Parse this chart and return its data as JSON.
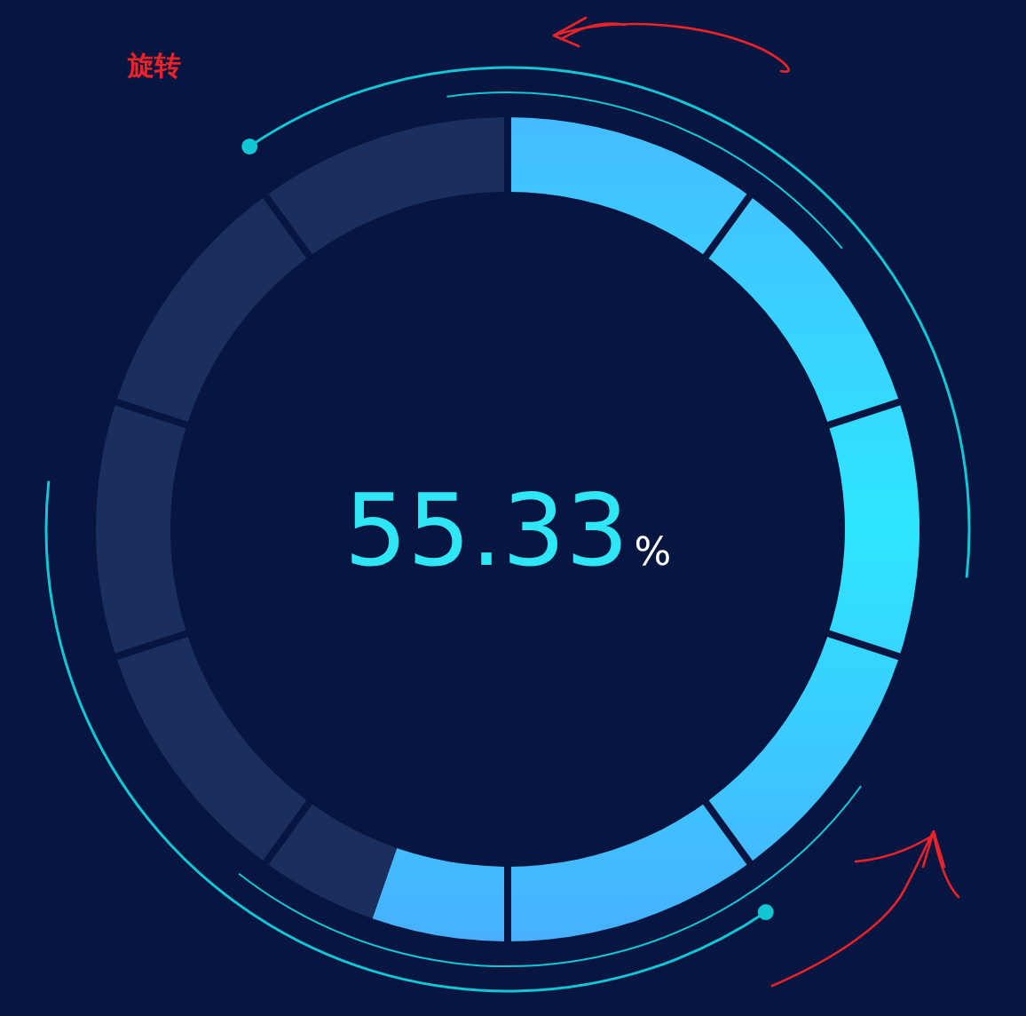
{
  "chart_data": {
    "type": "donut",
    "categories": [
      null,
      null
    ],
    "values": [
      55.33,
      44.67
    ],
    "colors": [
      "#2ee6ff",
      "#1a2f5e"
    ],
    "annotations": [
      "55.33%",
      "旋转"
    ]
  }
}
